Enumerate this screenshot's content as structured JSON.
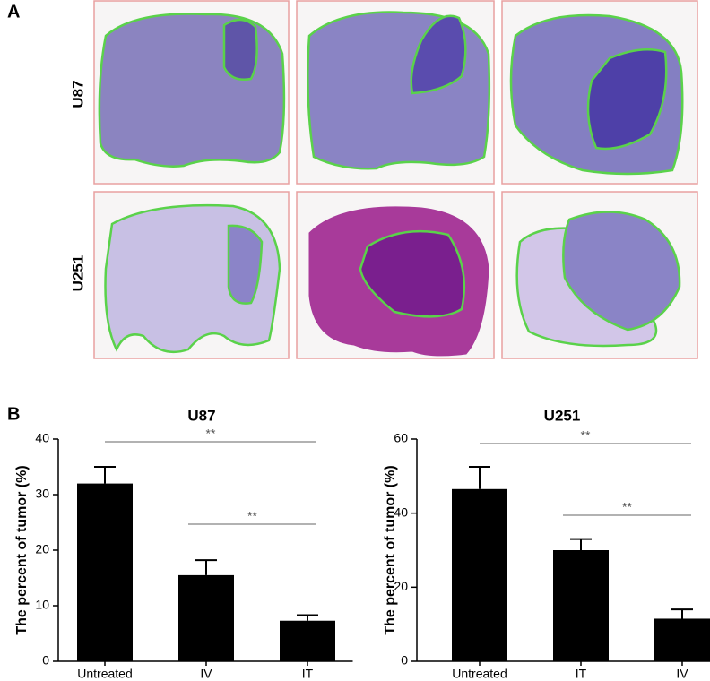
{
  "panel_a": {
    "label": "A",
    "row_labels": [
      "U87",
      "U251"
    ]
  },
  "panel_b": {
    "label": "B"
  },
  "chart_data": [
    {
      "type": "bar",
      "title": "U87",
      "y_label": "The percent of tumor (%)",
      "categories": [
        "Untreated",
        "IV",
        "IT"
      ],
      "values": [
        32,
        15.5,
        7.3
      ],
      "errors": [
        3,
        2.7,
        1
      ],
      "color": "#000000",
      "ylim": [
        0,
        40
      ],
      "yticks": [
        0,
        10,
        20,
        30,
        40
      ],
      "comparisons": [
        {
          "pair": [
            "Untreated",
            "IT"
          ],
          "label": "**"
        },
        {
          "pair": [
            "IV",
            "IT"
          ],
          "label": "**"
        }
      ]
    },
    {
      "type": "bar",
      "title": "U251",
      "y_label": "The percent of tumor (%)",
      "categories": [
        "Untreated",
        "IT",
        "IV"
      ],
      "values": [
        46.5,
        30,
        11.5
      ],
      "errors": [
        6,
        3,
        2.5
      ],
      "color": "#000000",
      "ylim": [
        0,
        60
      ],
      "yticks": [
        0,
        20,
        40,
        60
      ],
      "comparisons": [
        {
          "pair": [
            "Untreated",
            "IV"
          ],
          "label": "**"
        },
        {
          "pair": [
            "IT",
            "IV"
          ],
          "label": "**"
        }
      ]
    }
  ]
}
